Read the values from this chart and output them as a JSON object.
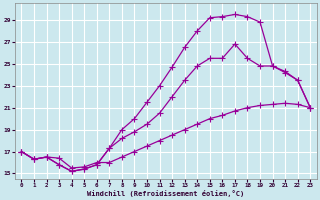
{
  "xlabel": "Windchill (Refroidissement éolien,°C)",
  "bg_color": "#cce8ee",
  "grid_color": "#ffffff",
  "line_color": "#990099",
  "xlim": [
    -0.5,
    23.5
  ],
  "ylim": [
    14.5,
    30.5
  ],
  "yticks": [
    15,
    17,
    19,
    21,
    23,
    25,
    27,
    29
  ],
  "xticks": [
    0,
    1,
    2,
    3,
    4,
    5,
    6,
    7,
    8,
    9,
    10,
    11,
    12,
    13,
    14,
    15,
    16,
    17,
    18,
    19,
    20,
    21,
    22,
    23
  ],
  "line1_x": [
    0,
    1,
    2,
    3,
    4,
    5,
    6,
    7,
    8,
    9,
    10,
    11,
    12,
    13,
    14,
    15,
    16,
    17,
    18,
    19,
    20,
    21,
    22,
    23
  ],
  "line1_y": [
    17,
    16.3,
    16.5,
    16.4,
    15.5,
    15.6,
    16.0,
    16.0,
    16.5,
    17.0,
    17.5,
    18.0,
    18.5,
    19.0,
    19.5,
    20.0,
    20.3,
    20.7,
    21.0,
    21.2,
    21.3,
    21.4,
    21.3,
    21.0
  ],
  "line2_x": [
    0,
    1,
    2,
    3,
    4,
    5,
    6,
    7,
    8,
    9,
    10,
    11,
    12,
    13,
    14,
    15,
    16,
    17,
    18,
    19,
    20,
    21,
    22,
    23
  ],
  "line2_y": [
    17,
    16.3,
    16.5,
    15.8,
    15.2,
    15.4,
    15.8,
    17.3,
    19.0,
    20.0,
    21.5,
    23.0,
    24.7,
    26.5,
    28.0,
    29.2,
    29.3,
    29.5,
    29.3,
    28.8,
    24.8,
    24.3,
    23.5,
    21.0
  ],
  "line3_x": [
    0,
    1,
    2,
    3,
    4,
    5,
    6,
    7,
    8,
    9,
    10,
    11,
    12,
    13,
    14,
    15,
    16,
    17,
    18,
    19,
    20,
    21,
    22,
    23
  ],
  "line3_y": [
    17,
    16.3,
    16.5,
    15.8,
    15.2,
    15.4,
    15.8,
    17.3,
    18.2,
    18.8,
    19.5,
    20.5,
    22.0,
    23.5,
    24.8,
    25.5,
    25.5,
    26.8,
    25.5,
    24.8,
    24.8,
    24.2,
    23.5,
    21.0
  ]
}
